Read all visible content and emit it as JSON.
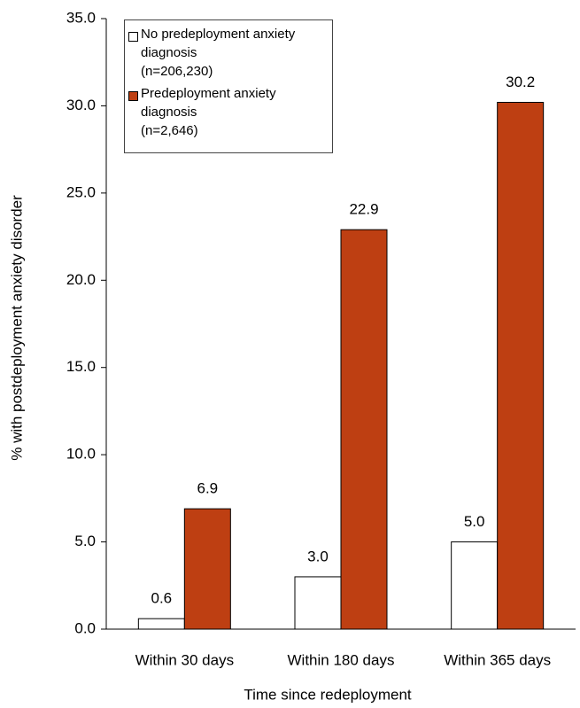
{
  "chart_data": {
    "type": "bar",
    "x_label": "Time since redeployment",
    "y_label": "% with postdeployment anxiety disorder",
    "categories": [
      "Within 30 days",
      "Within 180 days",
      "Within 365 days"
    ],
    "series": [
      {
        "name": "No predeployment anxiety diagnosis\n(n=206,230)",
        "color": "#ffffff",
        "values": [
          0.6,
          3.0,
          5.0
        ],
        "value_labels": [
          "0.6",
          "3.0",
          "5.0"
        ]
      },
      {
        "name": "Predeployment anxiety diagnosis\n(n=2,646)",
        "color": "#be3f12",
        "values": [
          6.9,
          22.9,
          30.2
        ],
        "value_labels": [
          "6.9",
          "22.9",
          "30.2"
        ]
      }
    ],
    "ylim": [
      0,
      35
    ],
    "yticks": [
      {
        "value": 0,
        "label": "0.0"
      },
      {
        "value": 5,
        "label": "5.0"
      },
      {
        "value": 10,
        "label": "10.0"
      },
      {
        "value": 15,
        "label": "15.0"
      },
      {
        "value": 20,
        "label": "20.0"
      },
      {
        "value": 25,
        "label": "25.0"
      },
      {
        "value": 30,
        "label": "30.0"
      },
      {
        "value": 35,
        "label": "35.0"
      }
    ],
    "grid": false,
    "legend": "upper-left"
  }
}
